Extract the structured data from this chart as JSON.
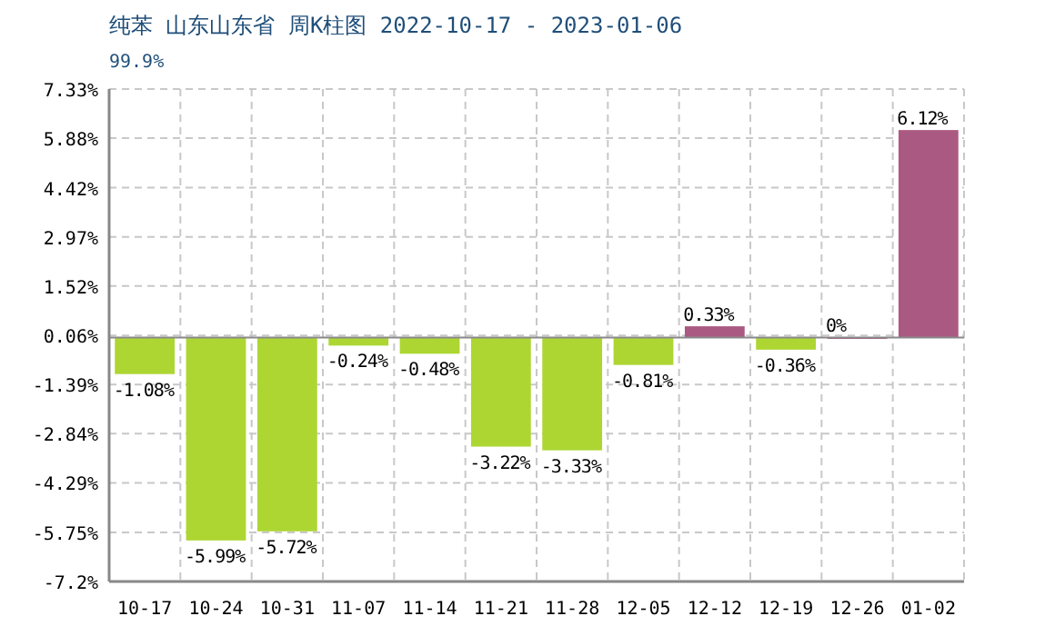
{
  "chart_data": {
    "type": "bar",
    "title": "纯苯 山东山东省 周K柱图 2022-10-17 - 2023-01-06",
    "subtitle": "99.9%",
    "categories": [
      "10-17",
      "10-24",
      "10-31",
      "11-07",
      "11-14",
      "11-21",
      "11-28",
      "12-05",
      "12-12",
      "12-19",
      "12-26",
      "01-02"
    ],
    "values": [
      -1.08,
      -5.99,
      -5.72,
      -0.24,
      -0.48,
      -3.22,
      -3.33,
      -0.81,
      0.33,
      -0.36,
      0,
      6.12
    ],
    "colors": [
      "#add633",
      "#add633",
      "#add633",
      "#add633",
      "#add633",
      "#add633",
      "#add633",
      "#add633",
      "#aa5a82",
      "#add633",
      "#aa5a82",
      "#aa5a82"
    ],
    "value_labels": [
      "-1.08%",
      "-5.99%",
      "-5.72%",
      "-0.24%",
      "-0.48%",
      "-3.22%",
      "-3.33%",
      "-0.81%",
      "0.33%",
      "-0.36%",
      "0%",
      "6.12%"
    ],
    "ylim": [
      -7.2,
      7.33
    ],
    "yticks": [
      {
        "value": 7.33,
        "label": "7.33%"
      },
      {
        "value": 5.88,
        "label": "5.88%"
      },
      {
        "value": 4.42,
        "label": "4.42%"
      },
      {
        "value": 2.97,
        "label": "2.97%"
      },
      {
        "value": 1.52,
        "label": "1.52%"
      },
      {
        "value": 0.06,
        "label": "0.06%"
      },
      {
        "value": -1.39,
        "label": "-1.39%"
      },
      {
        "value": -2.84,
        "label": "-2.84%"
      },
      {
        "value": -4.29,
        "label": "-4.29%"
      },
      {
        "value": -5.75,
        "label": "-5.75%"
      },
      {
        "value": -7.2,
        "label": "-7.2%"
      }
    ],
    "grid": true
  }
}
